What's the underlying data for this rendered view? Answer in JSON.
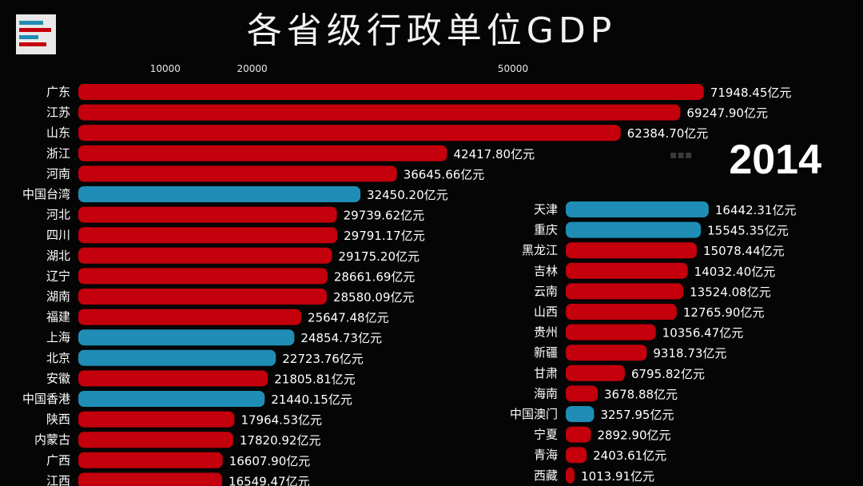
{
  "header": {
    "title": "各省级行政单位GDP",
    "year": "2014"
  },
  "colors": {
    "province": "#c4000d",
    "special": "#1f8db5",
    "background": "#050505"
  },
  "chart_data": {
    "type": "bar",
    "orientation": "horizontal",
    "title": "各省级行政单位GDP",
    "unit": "亿元",
    "value_suffix": "亿元",
    "x_ticks": [
      "10000",
      "20000",
      "50000"
    ],
    "year": "2014",
    "series": [
      {
        "name": "广东",
        "value": 71948.45,
        "label": "71948.45亿元",
        "group": "province"
      },
      {
        "name": "江苏",
        "value": 69247.9,
        "label": "69247.90亿元",
        "group": "province"
      },
      {
        "name": "山东",
        "value": 62384.7,
        "label": "62384.70亿元",
        "group": "province"
      },
      {
        "name": "浙江",
        "value": 42417.8,
        "label": "42417.80亿元",
        "group": "province"
      },
      {
        "name": "河南",
        "value": 36645.66,
        "label": "36645.66亿元",
        "group": "province"
      },
      {
        "name": "中国台湾",
        "value": 32450.2,
        "label": "32450.20亿元",
        "group": "special"
      },
      {
        "name": "河北",
        "value": 29739.62,
        "label": "29739.62亿元",
        "group": "province"
      },
      {
        "name": "四川",
        "value": 29791.17,
        "label": "29791.17亿元",
        "group": "province"
      },
      {
        "name": "湖北",
        "value": 29175.2,
        "label": "29175.20亿元",
        "group": "province"
      },
      {
        "name": "辽宁",
        "value": 28661.69,
        "label": "28661.69亿元",
        "group": "province"
      },
      {
        "name": "湖南",
        "value": 28580.09,
        "label": "28580.09亿元",
        "group": "province"
      },
      {
        "name": "福建",
        "value": 25647.48,
        "label": "25647.48亿元",
        "group": "province"
      },
      {
        "name": "上海",
        "value": 24854.73,
        "label": "24854.73亿元",
        "group": "special"
      },
      {
        "name": "北京",
        "value": 22723.76,
        "label": "22723.76亿元",
        "group": "special"
      },
      {
        "name": "安徽",
        "value": 21805.81,
        "label": "21805.81亿元",
        "group": "province"
      },
      {
        "name": "中国香港",
        "value": 21440.15,
        "label": "21440.15亿元",
        "group": "special"
      },
      {
        "name": "陕西",
        "value": 17964.53,
        "label": "17964.53亿元",
        "group": "province"
      },
      {
        "name": "内蒙古",
        "value": 17820.92,
        "label": "17820.92亿元",
        "group": "province"
      },
      {
        "name": "广西",
        "value": 16607.9,
        "label": "16607.90亿元",
        "group": "province"
      },
      {
        "name": "江西",
        "value": 16549.47,
        "label": "16549.47亿元",
        "group": "province"
      },
      {
        "name": "天津",
        "value": 16442.31,
        "label": "16442.31亿元",
        "group": "special"
      },
      {
        "name": "重庆",
        "value": 15545.35,
        "label": "15545.35亿元",
        "group": "special"
      },
      {
        "name": "黑龙江",
        "value": 15078.44,
        "label": "15078.44亿元",
        "group": "province"
      },
      {
        "name": "吉林",
        "value": 14032.4,
        "label": "14032.40亿元",
        "group": "province"
      },
      {
        "name": "云南",
        "value": 13524.08,
        "label": "13524.08亿元",
        "group": "province"
      },
      {
        "name": "山西",
        "value": 12765.9,
        "label": "12765.90亿元",
        "group": "province"
      },
      {
        "name": "贵州",
        "value": 10356.47,
        "label": "10356.47亿元",
        "group": "province"
      },
      {
        "name": "新疆",
        "value": 9318.73,
        "label": "9318.73亿元",
        "group": "province"
      },
      {
        "name": "甘肃",
        "value": 6795.82,
        "label": "6795.82亿元",
        "group": "province"
      },
      {
        "name": "海南",
        "value": 3678.88,
        "label": "3678.88亿元",
        "group": "province"
      },
      {
        "name": "中国澳门",
        "value": 3257.95,
        "label": "3257.95亿元",
        "group": "special"
      },
      {
        "name": "宁夏",
        "value": 2892.9,
        "label": "2892.90亿元",
        "group": "province"
      },
      {
        "name": "青海",
        "value": 2403.61,
        "label": "2403.61亿元",
        "group": "province"
      },
      {
        "name": "西藏",
        "value": 1013.91,
        "label": "1013.91亿元",
        "group": "province"
      }
    ]
  }
}
